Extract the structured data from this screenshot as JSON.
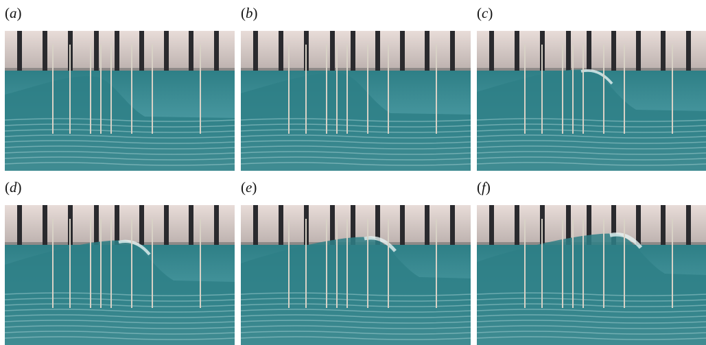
{
  "figure": {
    "panels": [
      {
        "label": "a",
        "image": "breaking-wave-photo",
        "stage": 1
      },
      {
        "label": "b",
        "image": "breaking-wave-photo",
        "stage": 2
      },
      {
        "label": "c",
        "image": "breaking-wave-photo",
        "stage": 3
      },
      {
        "label": "d",
        "image": "breaking-wave-photo",
        "stage": 4
      },
      {
        "label": "e",
        "image": "breaking-wave-photo",
        "stage": 5
      },
      {
        "label": "f",
        "image": "breaking-wave-photo",
        "stage": 6
      }
    ],
    "colors": {
      "wall": "#d9ccc8",
      "post": "#2a2a2e",
      "water_dark": "#2e7f86",
      "water_mid": "#4b9aa2",
      "water_light": "#a9d4d6",
      "foam": "#e6f2f2",
      "wire": "#d8d2c6"
    }
  }
}
